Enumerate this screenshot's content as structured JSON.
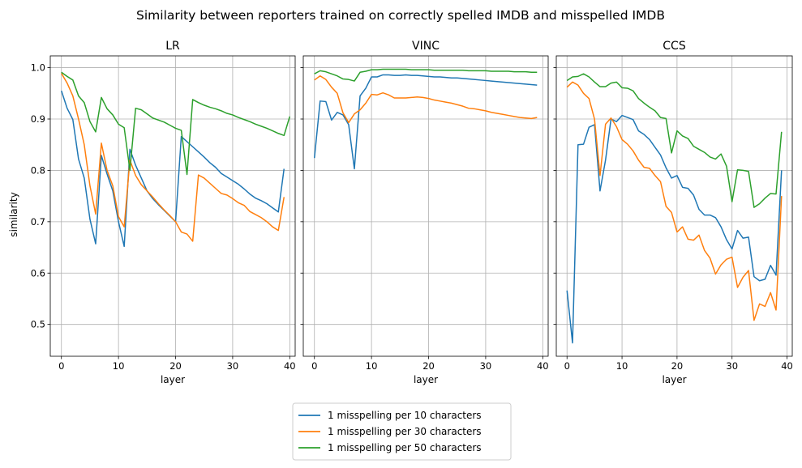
{
  "suptitle": "Similarity between reporters trained on correctly spelled IMDB and misspelled IMDB",
  "ylabel": "similarity",
  "legend": [
    {
      "label": "1 misspelling per 10 characters",
      "color": "#1f77b4"
    },
    {
      "label": "1 misspelling per 30 characters",
      "color": "#ff7f0e"
    },
    {
      "label": "1 misspelling per 50 characters",
      "color": "#2ca02c"
    }
  ],
  "chart_data": [
    {
      "type": "line",
      "title": "LR",
      "xlabel": "layer",
      "ylabel": "similarity",
      "xlim": [
        -1.95,
        40.95
      ],
      "ylim": [
        0.438,
        1.023
      ],
      "xticks": [
        0,
        10,
        20,
        30,
        40
      ],
      "yticks": [
        0.5,
        0.6,
        0.7,
        0.8,
        0.9,
        1.0
      ],
      "ytick_labels": [
        "0.5",
        "0.6",
        "0.7",
        "0.8",
        "0.9",
        "1.0"
      ],
      "grid": true,
      "series": [
        {
          "name": "1 misspelling per 10 characters",
          "color": "#1f77b4",
          "values": [
            0.955,
            0.921,
            0.899,
            0.822,
            0.785,
            0.705,
            0.657,
            0.829,
            0.793,
            0.76,
            0.7,
            0.652,
            0.841,
            0.81,
            0.785,
            0.76,
            0.745,
            0.733,
            0.722,
            0.711,
            0.7,
            0.866,
            0.856,
            0.846,
            0.836,
            0.826,
            0.815,
            0.806,
            0.794,
            0.787,
            0.78,
            0.773,
            0.764,
            0.754,
            0.746,
            0.741,
            0.735,
            0.727,
            0.719,
            0.803
          ]
        },
        {
          "name": "1 misspelling per 30 characters",
          "color": "#ff7f0e",
          "values": [
            0.989,
            0.97,
            0.945,
            0.9,
            0.85,
            0.77,
            0.715,
            0.853,
            0.8,
            0.77,
            0.71,
            0.69,
            0.82,
            0.79,
            0.772,
            0.76,
            0.748,
            0.735,
            0.723,
            0.712,
            0.7,
            0.68,
            0.676,
            0.662,
            0.791,
            0.785,
            0.775,
            0.765,
            0.755,
            0.752,
            0.745,
            0.737,
            0.732,
            0.72,
            0.714,
            0.708,
            0.7,
            0.69,
            0.683,
            0.748
          ]
        },
        {
          "name": "1 misspelling per 50 characters",
          "color": "#2ca02c",
          "values": [
            0.991,
            0.983,
            0.976,
            0.945,
            0.932,
            0.895,
            0.875,
            0.942,
            0.92,
            0.908,
            0.89,
            0.883,
            0.8,
            0.921,
            0.918,
            0.91,
            0.902,
            0.898,
            0.894,
            0.888,
            0.882,
            0.878,
            0.792,
            0.938,
            0.932,
            0.927,
            0.923,
            0.92,
            0.916,
            0.911,
            0.908,
            0.903,
            0.899,
            0.895,
            0.89,
            0.886,
            0.882,
            0.877,
            0.872,
            0.868,
            0.905
          ]
        }
      ]
    },
    {
      "type": "line",
      "title": "VINC",
      "xlabel": "layer",
      "xlim": [
        -1.95,
        40.95
      ],
      "ylim": [
        0.438,
        1.023
      ],
      "xticks": [
        0,
        10,
        20,
        30,
        40
      ],
      "yticks": [
        0.5,
        0.6,
        0.7,
        0.8,
        0.9,
        1.0
      ],
      "ytick_labels": [
        "",
        "",
        "",
        "",
        "",
        ""
      ],
      "grid": true,
      "series": [
        {
          "name": "1 misspelling per 10 characters",
          "color": "#1f77b4",
          "values": [
            0.824,
            0.935,
            0.934,
            0.898,
            0.913,
            0.908,
            0.889,
            0.803,
            0.945,
            0.96,
            0.982,
            0.982,
            0.986,
            0.986,
            0.985,
            0.985,
            0.986,
            0.985,
            0.985,
            0.984,
            0.983,
            0.982,
            0.982,
            0.981,
            0.98,
            0.98,
            0.979,
            0.978,
            0.977,
            0.976,
            0.975,
            0.974,
            0.973,
            0.972,
            0.971,
            0.97,
            0.969,
            0.968,
            0.967,
            0.966
          ]
        },
        {
          "name": "1 misspelling per 30 characters",
          "color": "#ff7f0e",
          "values": [
            0.976,
            0.984,
            0.977,
            0.962,
            0.95,
            0.912,
            0.893,
            0.91,
            0.918,
            0.931,
            0.948,
            0.947,
            0.951,
            0.947,
            0.941,
            0.941,
            0.941,
            0.942,
            0.943,
            0.942,
            0.94,
            0.937,
            0.935,
            0.933,
            0.931,
            0.928,
            0.925,
            0.921,
            0.92,
            0.918,
            0.916,
            0.913,
            0.911,
            0.909,
            0.907,
            0.905,
            0.903,
            0.902,
            0.901,
            0.903
          ]
        },
        {
          "name": "1 misspelling per 50 characters",
          "color": "#2ca02c",
          "values": [
            0.988,
            0.994,
            0.992,
            0.988,
            0.984,
            0.978,
            0.977,
            0.974,
            0.991,
            0.993,
            0.996,
            0.996,
            0.997,
            0.997,
            0.997,
            0.997,
            0.997,
            0.996,
            0.996,
            0.996,
            0.996,
            0.995,
            0.995,
            0.995,
            0.995,
            0.995,
            0.995,
            0.994,
            0.994,
            0.994,
            0.994,
            0.993,
            0.993,
            0.993,
            0.993,
            0.992,
            0.992,
            0.992,
            0.991,
            0.991
          ]
        }
      ]
    },
    {
      "type": "line",
      "title": "CCS",
      "xlabel": "layer",
      "xlim": [
        -1.95,
        40.95
      ],
      "ylim": [
        0.438,
        1.023
      ],
      "xticks": [
        0,
        10,
        20,
        30,
        40
      ],
      "yticks": [
        0.5,
        0.6,
        0.7,
        0.8,
        0.9,
        1.0
      ],
      "ytick_labels": [
        "",
        "",
        "",
        "",
        "",
        ""
      ],
      "grid": true,
      "series": [
        {
          "name": "1 misspelling per 10 characters",
          "color": "#1f77b4",
          "values": [
            0.566,
            0.464,
            0.85,
            0.851,
            0.884,
            0.889,
            0.76,
            0.82,
            0.9,
            0.895,
            0.907,
            0.903,
            0.899,
            0.877,
            0.87,
            0.86,
            0.845,
            0.83,
            0.805,
            0.785,
            0.79,
            0.767,
            0.765,
            0.752,
            0.724,
            0.713,
            0.713,
            0.708,
            0.69,
            0.665,
            0.647,
            0.683,
            0.668,
            0.67,
            0.593,
            0.585,
            0.588,
            0.615,
            0.596,
            0.8
          ]
        },
        {
          "name": "1 misspelling per 30 characters",
          "color": "#ff7f0e",
          "values": [
            0.962,
            0.972,
            0.966,
            0.95,
            0.94,
            0.9,
            0.79,
            0.89,
            0.902,
            0.885,
            0.86,
            0.851,
            0.838,
            0.82,
            0.806,
            0.804,
            0.79,
            0.778,
            0.73,
            0.718,
            0.68,
            0.69,
            0.666,
            0.664,
            0.674,
            0.644,
            0.629,
            0.598,
            0.616,
            0.627,
            0.631,
            0.572,
            0.592,
            0.605,
            0.508,
            0.54,
            0.535,
            0.562,
            0.528,
            0.75
          ]
        },
        {
          "name": "1 misspelling per 50 characters",
          "color": "#2ca02c",
          "values": [
            0.975,
            0.982,
            0.983,
            0.988,
            0.982,
            0.972,
            0.963,
            0.963,
            0.97,
            0.972,
            0.961,
            0.96,
            0.955,
            0.94,
            0.931,
            0.923,
            0.916,
            0.903,
            0.901,
            0.834,
            0.877,
            0.867,
            0.862,
            0.847,
            0.841,
            0.835,
            0.826,
            0.822,
            0.832,
            0.808,
            0.739,
            0.801,
            0.8,
            0.798,
            0.728,
            0.735,
            0.746,
            0.755,
            0.754,
            0.875
          ]
        }
      ]
    }
  ]
}
